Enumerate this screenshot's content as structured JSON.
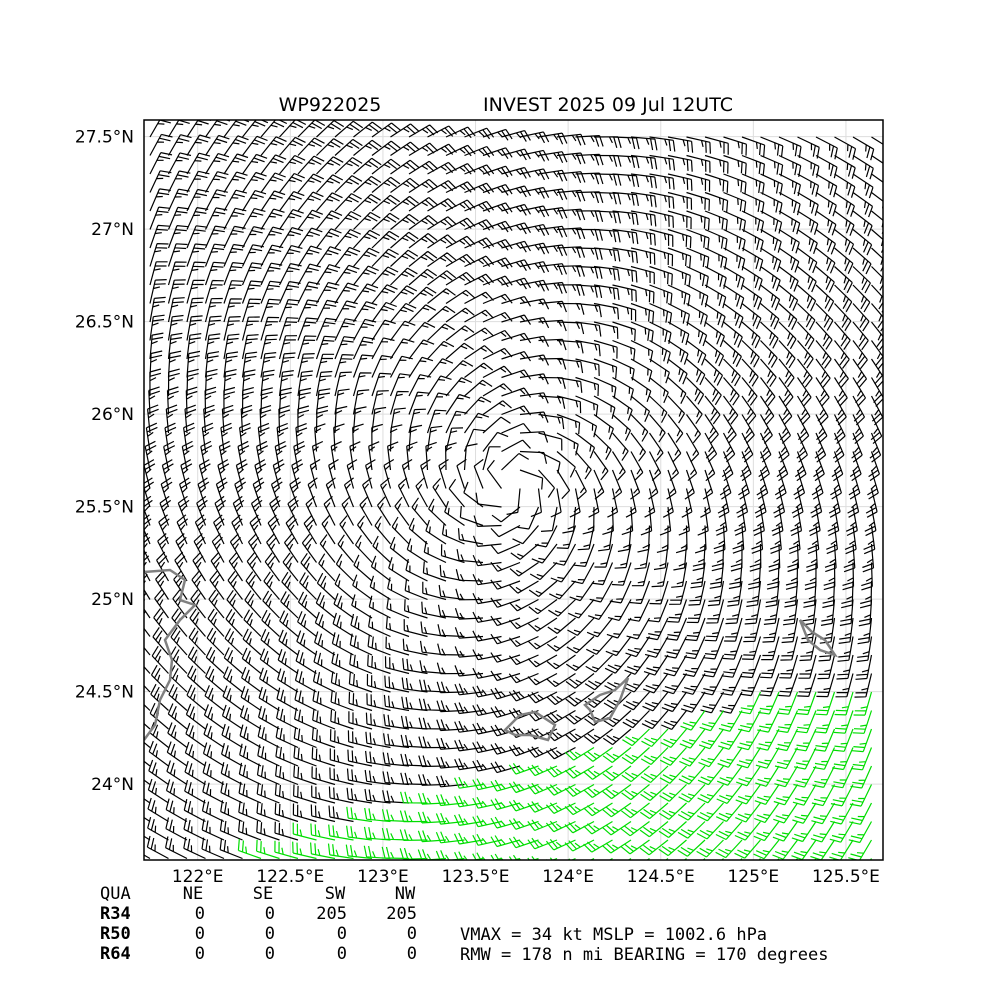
{
  "map": {
    "title_left": "WP922025",
    "title_right": "INVEST 2025 09 Jul 12UTC",
    "lon_range": [
      121.71,
      125.7
    ],
    "lat_range": [
      23.59,
      27.59
    ],
    "lon_ticks": [
      {
        "value": 122,
        "label": "122°E"
      },
      {
        "value": 122.5,
        "label": "122.5°E"
      },
      {
        "value": 123,
        "label": "123°E"
      },
      {
        "value": 123.5,
        "label": "123.5°E"
      },
      {
        "value": 124,
        "label": "124°E"
      },
      {
        "value": 124.5,
        "label": "124.5°E"
      },
      {
        "value": 125,
        "label": "125°E"
      },
      {
        "value": 125.5,
        "label": "125.5°E"
      }
    ],
    "lat_ticks": [
      {
        "value": 24,
        "label": "24°N"
      },
      {
        "value": 24.5,
        "label": "24.5°N"
      },
      {
        "value": 25,
        "label": "25°N"
      },
      {
        "value": 25.5,
        "label": "25.5°N"
      },
      {
        "value": 26,
        "label": "26°N"
      },
      {
        "value": 26.5,
        "label": "26.5°N"
      },
      {
        "value": 27,
        "label": "27°N"
      },
      {
        "value": 27.5,
        "label": "27.5°N"
      }
    ]
  },
  "table": {
    "header": [
      "QUA",
      "NE",
      "SE",
      "SW",
      "NW"
    ],
    "rows": [
      [
        "R34",
        0,
        0,
        205,
        205
      ],
      [
        "R50",
        0,
        0,
        0,
        0
      ],
      [
        "R64",
        0,
        0,
        0,
        0
      ]
    ]
  },
  "stats": [
    "VMAX =  34 kt MSLP = 1002.6 hPa",
    "RMW = 178 n mi BEARING = 170 degrees"
  ]
}
